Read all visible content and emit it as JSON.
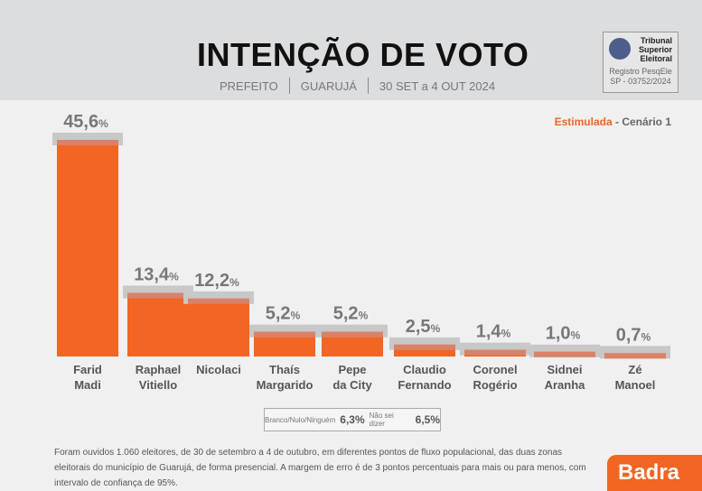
{
  "header": {
    "title": "INTENÇÃO DE VOTO",
    "office": "PREFEITO",
    "city": "GUARUJÁ",
    "period": "30 SET a 4 OUT 2024"
  },
  "tse": {
    "name_lines": [
      "Tribunal",
      "Superior",
      "Eleitoral"
    ],
    "reg1": "Registro PesqEle",
    "reg2": "SP - 03752/2024"
  },
  "scenario": {
    "type": "Estimulada",
    "sep": " - ",
    "name": "Cenário 1"
  },
  "chart_data": {
    "type": "bar",
    "title": "INTENÇÃO DE VOTO",
    "categories": [
      [
        "Farid",
        "Madi"
      ],
      [
        "Raphael",
        "Vitiello"
      ],
      [
        "Nicolaci",
        ""
      ],
      [
        "Thaís",
        "Margarido"
      ],
      [
        "Pepe",
        "da City"
      ],
      [
        "Claudio",
        "Fernando"
      ],
      [
        "Coronel",
        "Rogério"
      ],
      [
        "Sidnei",
        "Aranha"
      ],
      [
        "Zé",
        "Manoel"
      ]
    ],
    "values": [
      45.6,
      13.4,
      12.2,
      5.2,
      5.2,
      2.5,
      1.4,
      1.0,
      0.7
    ],
    "labels": [
      "45,6",
      "13,4",
      "12,2",
      "5,2",
      "5,2",
      "2,5",
      "1,4",
      "1,0",
      "0,7"
    ],
    "unit": "%",
    "ylim": [
      0,
      50
    ],
    "colors": {
      "bar": "#f26522",
      "band": "#c8c8c8"
    }
  },
  "other": {
    "blank_label": "Branco/Nulo/Ninguém",
    "blank_value": "6,3%",
    "unsure_label": "Não sei dizer",
    "unsure_value": "6,5%"
  },
  "note": "Foram ouvidos 1.060 eleitores, de 30 de setembro a 4 de outubro, em diferentes pontos de fluxo populacional, das duas zonas eleitorais do município de Guarujá, de forma presencial. A margem de erro é de 3 pontos percentuais para mais ou para menos, com intervalo de confiança de 95%.",
  "brand": "Badra"
}
